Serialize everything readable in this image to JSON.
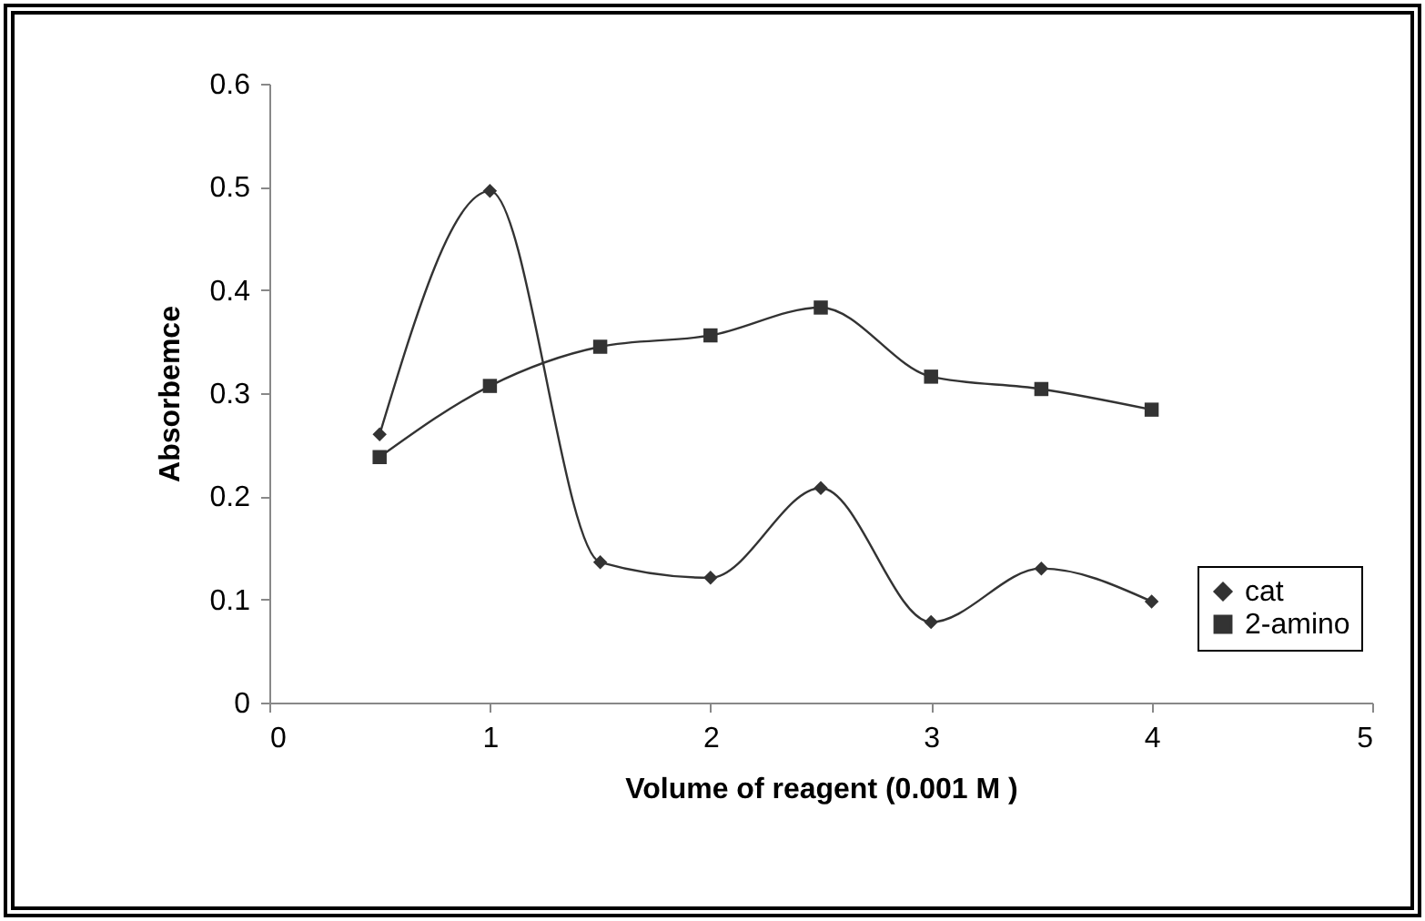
{
  "chart_data": {
    "type": "line",
    "xlabel": "Volume of reagent (0.001 M )",
    "ylabel": "Absorbemce",
    "x": [
      0.5,
      1,
      1.5,
      2,
      2.5,
      3,
      3.5,
      4
    ],
    "series": [
      {
        "name": "cat",
        "color": "#333333",
        "marker": "diamond",
        "values": [
          0.26,
          0.496,
          0.136,
          0.121,
          0.208,
          0.078,
          0.13,
          0.098
        ]
      },
      {
        "name": "2-amino",
        "color": "#333333",
        "marker": "square",
        "values": [
          0.238,
          0.307,
          0.345,
          0.356,
          0.383,
          0.316,
          0.304,
          0.284
        ]
      }
    ],
    "xlim": [
      0,
      5
    ],
    "xticks": [
      0,
      1,
      2,
      3,
      4,
      5
    ],
    "ylim": [
      0,
      0.6
    ],
    "yticks": [
      0,
      0.1,
      0.2,
      0.3,
      0.4,
      0.5,
      0.6
    ],
    "grid": false,
    "legend": "bottom right",
    "line_style": "solid"
  }
}
